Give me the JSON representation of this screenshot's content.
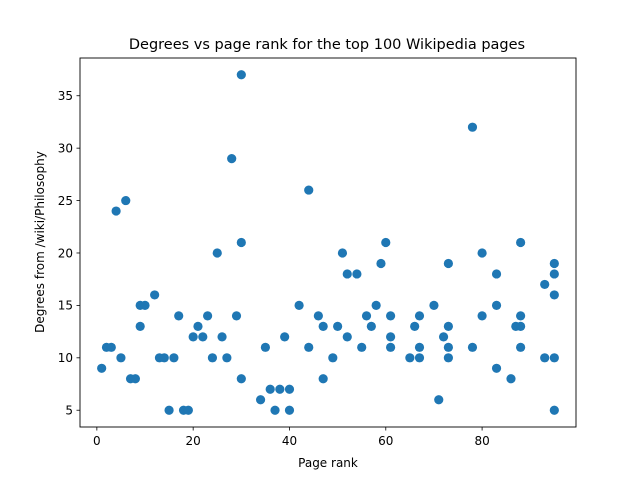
{
  "chart_data": {
    "type": "scatter",
    "title": "Degrees vs page rank for the top 100 Wikipedia pages",
    "xlabel": "Page rank",
    "ylabel": "Degrees from /wiki/Philosophy",
    "xlim": [
      -3.5,
      99.5
    ],
    "ylim": [
      3.4,
      38.6
    ],
    "xticks": [
      0,
      20,
      40,
      60,
      80
    ],
    "yticks": [
      5,
      10,
      15,
      20,
      25,
      30,
      35
    ],
    "grid": false,
    "marker_color": "#1f77b4",
    "points": [
      {
        "x": 1,
        "y": 9
      },
      {
        "x": 2,
        "y": 11
      },
      {
        "x": 3,
        "y": 11
      },
      {
        "x": 4,
        "y": 24
      },
      {
        "x": 5,
        "y": 10
      },
      {
        "x": 6,
        "y": 25
      },
      {
        "x": 7,
        "y": 8
      },
      {
        "x": 8,
        "y": 8
      },
      {
        "x": 9,
        "y": 13
      },
      {
        "x": 9,
        "y": 15
      },
      {
        "x": 10,
        "y": 15
      },
      {
        "x": 12,
        "y": 16
      },
      {
        "x": 13,
        "y": 10
      },
      {
        "x": 14,
        "y": 10
      },
      {
        "x": 15,
        "y": 5
      },
      {
        "x": 16,
        "y": 10
      },
      {
        "x": 17,
        "y": 14
      },
      {
        "x": 18,
        "y": 5
      },
      {
        "x": 19,
        "y": 5
      },
      {
        "x": 20,
        "y": 12
      },
      {
        "x": 21,
        "y": 13
      },
      {
        "x": 22,
        "y": 12
      },
      {
        "x": 23,
        "y": 14
      },
      {
        "x": 24,
        "y": 10
      },
      {
        "x": 25,
        "y": 20
      },
      {
        "x": 26,
        "y": 12
      },
      {
        "x": 27,
        "y": 10
      },
      {
        "x": 28,
        "y": 29
      },
      {
        "x": 29,
        "y": 14
      },
      {
        "x": 30,
        "y": 37
      },
      {
        "x": 30,
        "y": 21
      },
      {
        "x": 30,
        "y": 8
      },
      {
        "x": 34,
        "y": 6
      },
      {
        "x": 35,
        "y": 11
      },
      {
        "x": 36,
        "y": 7
      },
      {
        "x": 37,
        "y": 5
      },
      {
        "x": 38,
        "y": 7
      },
      {
        "x": 39,
        "y": 12
      },
      {
        "x": 40,
        "y": 5
      },
      {
        "x": 40,
        "y": 7
      },
      {
        "x": 42,
        "y": 15
      },
      {
        "x": 44,
        "y": 26
      },
      {
        "x": 44,
        "y": 11
      },
      {
        "x": 46,
        "y": 14
      },
      {
        "x": 47,
        "y": 13
      },
      {
        "x": 47,
        "y": 8
      },
      {
        "x": 49,
        "y": 10
      },
      {
        "x": 50,
        "y": 13
      },
      {
        "x": 51,
        "y": 20
      },
      {
        "x": 52,
        "y": 18
      },
      {
        "x": 52,
        "y": 12
      },
      {
        "x": 54,
        "y": 18
      },
      {
        "x": 55,
        "y": 11
      },
      {
        "x": 56,
        "y": 14
      },
      {
        "x": 57,
        "y": 13
      },
      {
        "x": 58,
        "y": 15
      },
      {
        "x": 59,
        "y": 19
      },
      {
        "x": 60,
        "y": 21
      },
      {
        "x": 61,
        "y": 14
      },
      {
        "x": 61,
        "y": 12
      },
      {
        "x": 61,
        "y": 11
      },
      {
        "x": 65,
        "y": 10
      },
      {
        "x": 66,
        "y": 13
      },
      {
        "x": 67,
        "y": 14
      },
      {
        "x": 67,
        "y": 11
      },
      {
        "x": 67,
        "y": 10
      },
      {
        "x": 70,
        "y": 15
      },
      {
        "x": 71,
        "y": 6
      },
      {
        "x": 72,
        "y": 12
      },
      {
        "x": 73,
        "y": 19
      },
      {
        "x": 73,
        "y": 13
      },
      {
        "x": 73,
        "y": 11
      },
      {
        "x": 73,
        "y": 10
      },
      {
        "x": 78,
        "y": 32
      },
      {
        "x": 78,
        "y": 11
      },
      {
        "x": 80,
        "y": 20
      },
      {
        "x": 80,
        "y": 14
      },
      {
        "x": 83,
        "y": 18
      },
      {
        "x": 83,
        "y": 15
      },
      {
        "x": 83,
        "y": 9
      },
      {
        "x": 86,
        "y": 8
      },
      {
        "x": 87,
        "y": 13
      },
      {
        "x": 88,
        "y": 21
      },
      {
        "x": 88,
        "y": 14
      },
      {
        "x": 88,
        "y": 13
      },
      {
        "x": 88,
        "y": 11
      },
      {
        "x": 93,
        "y": 17
      },
      {
        "x": 93,
        "y": 10
      },
      {
        "x": 95,
        "y": 19
      },
      {
        "x": 95,
        "y": 18
      },
      {
        "x": 95,
        "y": 16
      },
      {
        "x": 95,
        "y": 10
      },
      {
        "x": 95,
        "y": 5
      }
    ]
  }
}
